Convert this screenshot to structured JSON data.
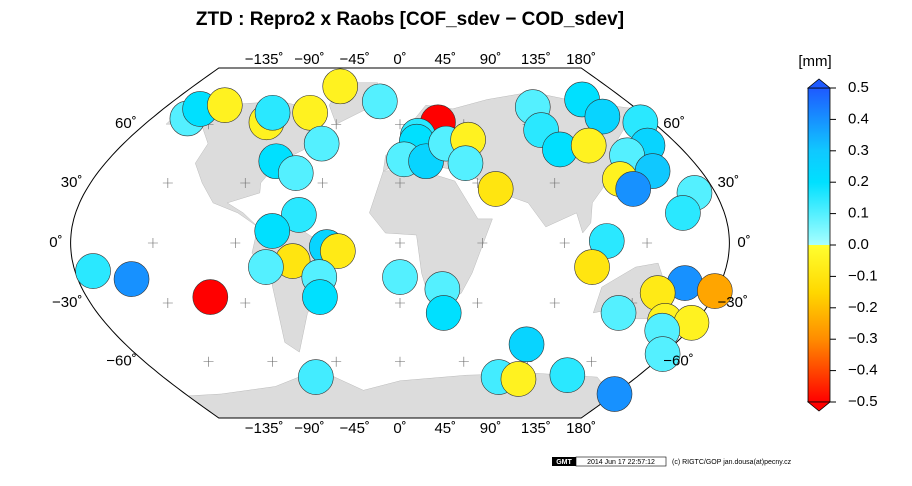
{
  "chart_data": {
    "type": "map",
    "title": "ZTD : Repro2 x Raobs [COF_sdev − COD_sdev]",
    "colorbar_label": "[mm]",
    "colorbar": {
      "lim": [
        -0.5,
        0.5
      ],
      "ticks": [
        0.5,
        0.4,
        0.3,
        0.2,
        0.1,
        {
          "value": 0,
          "label": "0.0"
        },
        {
          "value": -0.1,
          "label": "−0.1"
        },
        {
          "value": -0.2,
          "label": "−0.2"
        },
        {
          "value": -0.3,
          "label": "−0.3"
        },
        {
          "value": -0.4,
          "label": "−0.4"
        },
        {
          "value": -0.5,
          "label": "−0.5"
        }
      ],
      "stops": [
        {
          "value": -0.5,
          "color": "#ff0000"
        },
        {
          "value": -0.3,
          "color": "#ff8c00"
        },
        {
          "value": -0.15,
          "color": "#ffd800"
        },
        {
          "value": 0,
          "color": "#ffff30"
        },
        {
          "value": 0,
          "color": "#a8ffff"
        },
        {
          "value": 0.2,
          "color": "#00e0ff"
        },
        {
          "value": 0.3,
          "color": "#10c8ff"
        },
        {
          "value": 0.5,
          "color": "#1e5aff"
        }
      ]
    },
    "xticks": [
      {
        "value": -135,
        "label": "−135˚"
      },
      {
        "value": -90,
        "label": "−90˚"
      },
      {
        "value": -45,
        "label": "−45˚"
      },
      {
        "value": 0,
        "label": "0˚"
      },
      {
        "value": 45,
        "label": "45˚"
      },
      {
        "value": 90,
        "label": "90˚"
      },
      {
        "value": 135,
        "label": "135˚"
      },
      {
        "value": 180,
        "label": "180˚"
      }
    ],
    "yticks": [
      {
        "value": 60,
        "label": "60˚"
      },
      {
        "value": 30,
        "label": "30˚"
      },
      {
        "value": 0,
        "label": "0˚"
      },
      {
        "value": -30,
        "label": "−30˚"
      },
      {
        "value": -60,
        "label": "−60˚"
      }
    ],
    "stations": [
      {
        "lon": -170,
        "lat": -14,
        "value": 0.15
      },
      {
        "lon": -150,
        "lat": -18,
        "value": 0.4
      },
      {
        "lon": -109,
        "lat": -27,
        "value": -0.5
      },
      {
        "lon": -154,
        "lat": 63,
        "value": 0.1
      },
      {
        "lon": -152,
        "lat": 68,
        "value": 0.2
      },
      {
        "lon": -136,
        "lat": 70,
        "value": -0.05
      },
      {
        "lon": -95,
        "lat": 61,
        "value": -0.05
      },
      {
        "lon": -95,
        "lat": 66,
        "value": 0.15
      },
      {
        "lon": -67,
        "lat": 66,
        "value": -0.05
      },
      {
        "lon": -52,
        "lat": 80,
        "value": -0.05
      },
      {
        "lon": -16,
        "lat": 72,
        "value": 0.1
      },
      {
        "lon": -51,
        "lat": 50,
        "value": 0.1
      },
      {
        "lon": -76,
        "lat": 41,
        "value": 0.2
      },
      {
        "lon": -62,
        "lat": 35,
        "value": 0.1
      },
      {
        "lon": -56,
        "lat": 14,
        "value": 0.15
      },
      {
        "lon": -70,
        "lat": 6,
        "value": 0.2
      },
      {
        "lon": -59,
        "lat": -9,
        "value": -0.1
      },
      {
        "lon": -74,
        "lat": -12,
        "value": 0.1
      },
      {
        "lon": -40,
        "lat": -2,
        "value": 0.25
      },
      {
        "lon": -34,
        "lat": -4,
        "value": -0.08
      },
      {
        "lon": -45,
        "lat": -17,
        "value": 0.1
      },
      {
        "lon": -46,
        "lat": -27,
        "value": 0.2
      },
      {
        "lon": -64,
        "lat": -68,
        "value": 0.12
      },
      {
        "lon": 0,
        "lat": -17,
        "value": 0.1
      },
      {
        "lon": 24,
        "lat": -23,
        "value": 0.1
      },
      {
        "lon": 26,
        "lat": -35,
        "value": 0.2
      },
      {
        "lon": 27,
        "lat": 61,
        "value": -0.5
      },
      {
        "lon": 12,
        "lat": 54,
        "value": 0.15
      },
      {
        "lon": 11,
        "lat": 51,
        "value": 0.2
      },
      {
        "lon": 2.5,
        "lat": 42,
        "value": 0.1
      },
      {
        "lon": 16,
        "lat": 41,
        "value": 0.25
      },
      {
        "lon": 30,
        "lat": 50,
        "value": 0.1
      },
      {
        "lon": 45,
        "lat": 52,
        "value": -0.05
      },
      {
        "lon": 40,
        "lat": 40,
        "value": 0.1
      },
      {
        "lon": 55,
        "lat": 27,
        "value": -0.1
      },
      {
        "lon": 102,
        "lat": 69,
        "value": 0.1
      },
      {
        "lon": 97,
        "lat": 57,
        "value": 0.15
      },
      {
        "lon": 102,
        "lat": 47,
        "value": 0.2
      },
      {
        "lon": 146,
        "lat": 73,
        "value": 0.2
      },
      {
        "lon": 148,
        "lat": 64,
        "value": 0.25
      },
      {
        "lon": 122,
        "lat": 49,
        "value": -0.05
      },
      {
        "lon": 171,
        "lat": 61,
        "value": 0.15
      },
      {
        "lon": 160,
        "lat": 49,
        "value": 0.25
      },
      {
        "lon": 142,
        "lat": 44,
        "value": 0.1
      },
      {
        "lon": 129,
        "lat": 32,
        "value": -0.05
      },
      {
        "lon": 151,
        "lat": 36,
        "value": 0.3
      },
      {
        "lon": 134,
        "lat": 27,
        "value": 0.4
      },
      {
        "lon": 168,
        "lat": 25,
        "value": 0.1
      },
      {
        "lon": 157,
        "lat": 15,
        "value": 0.15
      },
      {
        "lon": 113,
        "lat": 1,
        "value": 0.15
      },
      {
        "lon": 106,
        "lat": -12,
        "value": -0.1
      },
      {
        "lon": 160,
        "lat": -20,
        "value": 0.4
      },
      {
        "lon": 179,
        "lat": -24,
        "value": -0.25
      },
      {
        "lon": 147,
        "lat": -25,
        "value": -0.08
      },
      {
        "lon": 130,
        "lat": -35,
        "value": 0.1
      },
      {
        "lon": 161,
        "lat": -39,
        "value": -0.05
      },
      {
        "lon": 178,
        "lat": -40,
        "value": -0.05
      },
      {
        "lon": 164,
        "lat": -44,
        "value": 0.1
      },
      {
        "lon": 179,
        "lat": -56,
        "value": 0.1
      },
      {
        "lon": 83,
        "lat": -51,
        "value": 0.25
      },
      {
        "lon": 75,
        "lat": -68,
        "value": 0.12
      },
      {
        "lon": 91,
        "lat": -69,
        "value": -0.05
      },
      {
        "lon": 126,
        "lat": -67,
        "value": 0.15
      },
      {
        "lon": 180,
        "lat": -77,
        "value": 0.4
      }
    ],
    "logo": "GMT",
    "timestamp": "2014 Jun 17 22:57:12",
    "credit": "(c) RIGTC/GOP jan.dousa(at)pecny.cz"
  }
}
